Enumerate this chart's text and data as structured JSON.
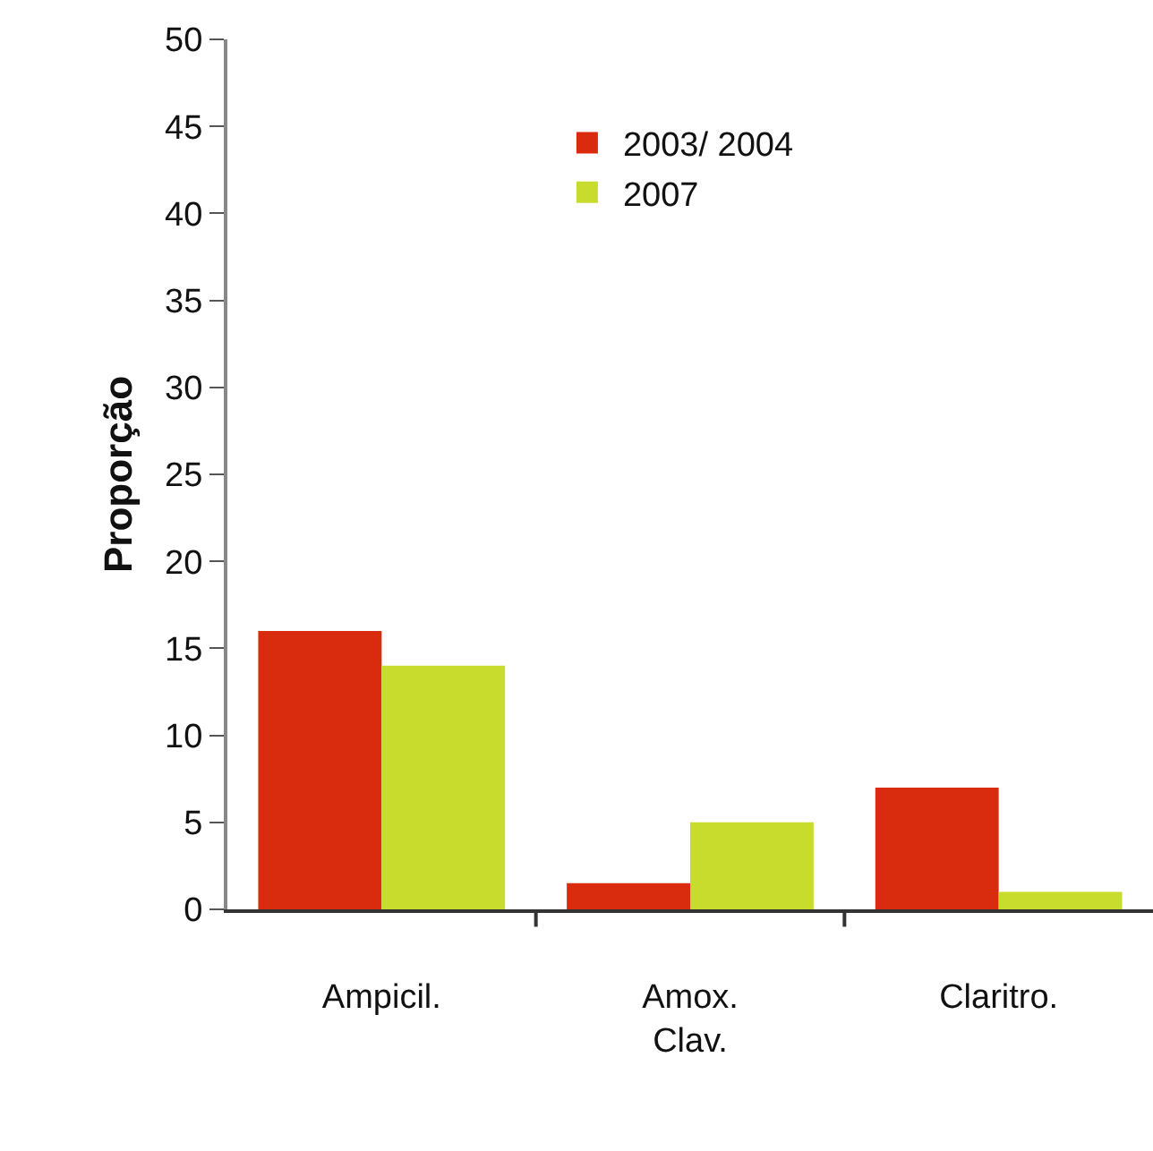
{
  "chart_data": {
    "type": "bar",
    "ylabel": "Proporção",
    "categories": [
      "Ampicil.",
      "Amox.\nClav.",
      "Claritro."
    ],
    "series": [
      {
        "name": "2003/ 2004",
        "color": "#d92b0e",
        "values": [
          16,
          1.5,
          7
        ]
      },
      {
        "name": "2007",
        "color": "#c8dc2e",
        "values": [
          14,
          5,
          1
        ]
      }
    ],
    "ylim": [
      0,
      50
    ],
    "yticks": [
      0,
      5,
      10,
      15,
      20,
      25,
      30,
      35,
      40,
      45,
      50
    ],
    "legend": "top right"
  }
}
